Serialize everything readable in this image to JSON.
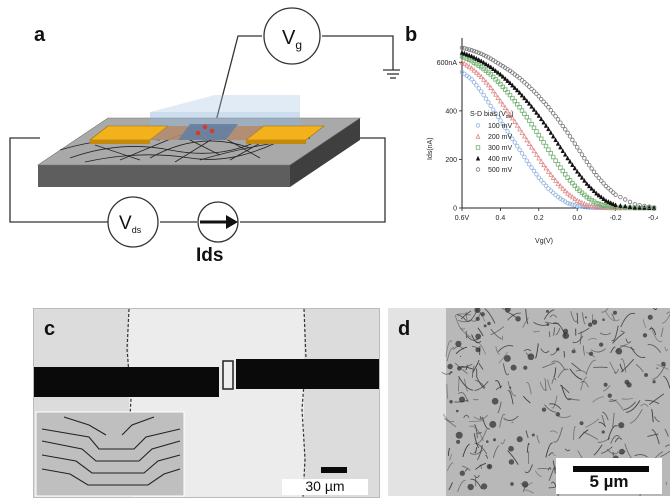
{
  "panels": {
    "a": "a",
    "b": "b",
    "c": "c",
    "d": "d"
  },
  "schematic": {
    "vg_label_main": "V",
    "vg_label_sub": "g",
    "vds_label_main": "V",
    "vds_label_sub": "ds",
    "ids_label": "Ids"
  },
  "chart_data": {
    "type": "scatter",
    "ylabel": "Ids(nA)",
    "xlabel": "Vg(V)",
    "x_ticks": [
      "0.6V",
      "0.4",
      "0.2",
      "0.0",
      "-0.2",
      "-0.4"
    ],
    "y_ticks": [
      "0",
      "200",
      "400",
      "600nA"
    ],
    "xlim": [
      0.6,
      -0.4
    ],
    "ylim": [
      0,
      700
    ],
    "legend_title_main": "S-D bias (V",
    "legend_title_sub": "ds",
    "legend_title_end": ")",
    "legend_placement": "left-middle",
    "series": [
      {
        "name": "100 mV",
        "marker": "circle-open",
        "color": "#8fb3e0",
        "x": [
          0.6,
          0.55,
          0.5,
          0.45,
          0.4,
          0.35,
          0.3,
          0.25,
          0.2,
          0.15,
          0.1,
          0.05,
          0.0,
          -0.05,
          -0.1,
          -0.15,
          -0.2,
          -0.3,
          -0.4
        ],
        "y": [
          560,
          530,
          480,
          420,
          360,
          300,
          240,
          180,
          125,
          80,
          45,
          20,
          8,
          3,
          1,
          0,
          0,
          0,
          0
        ]
      },
      {
        "name": "200 mV",
        "marker": "triangle-open",
        "color": "#e08a8a",
        "x": [
          0.6,
          0.55,
          0.5,
          0.45,
          0.4,
          0.35,
          0.3,
          0.25,
          0.2,
          0.15,
          0.1,
          0.05,
          0.0,
          -0.05,
          -0.1,
          -0.15,
          -0.2,
          -0.3,
          -0.4
        ],
        "y": [
          600,
          575,
          540,
          495,
          440,
          385,
          325,
          265,
          205,
          150,
          100,
          60,
          30,
          12,
          4,
          1,
          0,
          0,
          0
        ]
      },
      {
        "name": "300 mV",
        "marker": "square-open",
        "color": "#6fb06f",
        "x": [
          0.6,
          0.55,
          0.5,
          0.45,
          0.4,
          0.35,
          0.3,
          0.25,
          0.2,
          0.15,
          0.1,
          0.05,
          0.0,
          -0.05,
          -0.1,
          -0.15,
          -0.2,
          -0.3,
          -0.4
        ],
        "y": [
          625,
          605,
          580,
          550,
          510,
          465,
          415,
          360,
          300,
          240,
          180,
          125,
          80,
          45,
          20,
          8,
          3,
          0,
          0
        ]
      },
      {
        "name": "400 mV",
        "marker": "triangle-filled",
        "color": "#111111",
        "x": [
          0.6,
          0.55,
          0.5,
          0.45,
          0.4,
          0.35,
          0.3,
          0.25,
          0.2,
          0.15,
          0.1,
          0.05,
          0.0,
          -0.05,
          -0.1,
          -0.15,
          -0.2,
          -0.3,
          -0.4
        ],
        "y": [
          640,
          625,
          605,
          580,
          550,
          515,
          475,
          430,
          380,
          325,
          265,
          205,
          150,
          100,
          60,
          30,
          12,
          2,
          0
        ]
      },
      {
        "name": "500 mV",
        "marker": "circle-open",
        "color": "#777777",
        "x": [
          0.6,
          0.55,
          0.5,
          0.45,
          0.4,
          0.35,
          0.3,
          0.25,
          0.2,
          0.15,
          0.1,
          0.05,
          0.0,
          -0.05,
          -0.1,
          -0.15,
          -0.2,
          -0.3,
          -0.4
        ],
        "y": [
          660,
          650,
          635,
          615,
          590,
          565,
          535,
          500,
          460,
          415,
          365,
          310,
          250,
          190,
          135,
          90,
          55,
          15,
          2
        ]
      }
    ]
  },
  "scalebars": {
    "c_label": "30 µm",
    "d_label": "5 µm"
  }
}
